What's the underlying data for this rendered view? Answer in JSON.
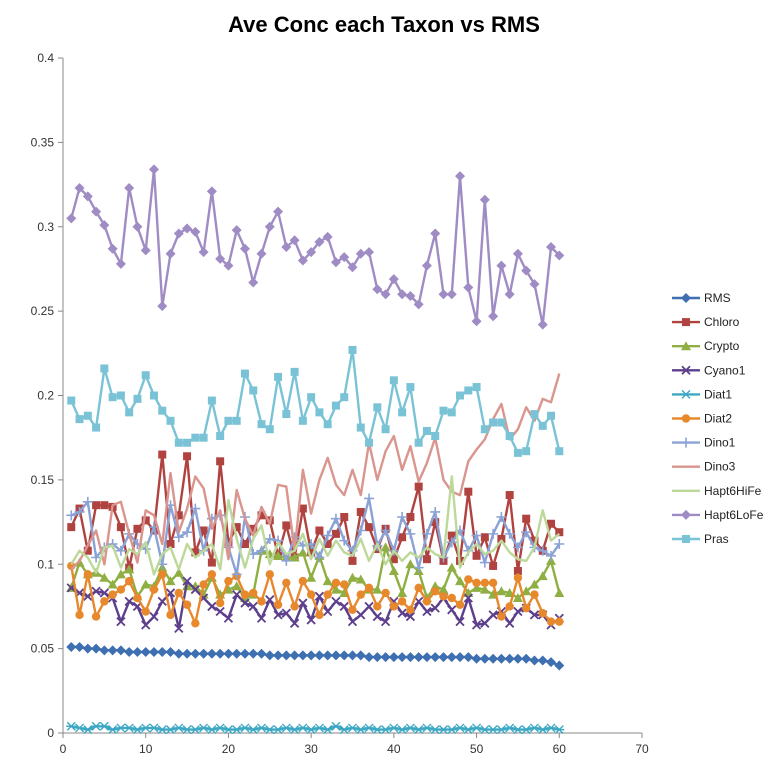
{
  "chart_data": {
    "type": "line",
    "title": "Ave Conc each Taxon vs RMS",
    "xlabel": "",
    "ylabel": "",
    "xlim": [
      0,
      70
    ],
    "ylim": [
      0,
      0.4
    ],
    "x_ticks": [
      "0",
      "10",
      "20",
      "30",
      "40",
      "50",
      "60",
      "70"
    ],
    "y_ticks": [
      "0",
      "0.05",
      "0.1",
      "0.15",
      "0.2",
      "0.25",
      "0.3",
      "0.35",
      "0.4"
    ],
    "grid": false,
    "legend_position": "right",
    "x": [
      1,
      2,
      3,
      4,
      5,
      6,
      7,
      8,
      9,
      10,
      11,
      12,
      13,
      14,
      15,
      16,
      17,
      18,
      19,
      20,
      21,
      22,
      23,
      24,
      25,
      26,
      27,
      28,
      29,
      30,
      31,
      32,
      33,
      34,
      35,
      36,
      37,
      38,
      39,
      40,
      41,
      42,
      43,
      44,
      45,
      46,
      47,
      48,
      49,
      50,
      51,
      52,
      53,
      54,
      55,
      56,
      57,
      58,
      59,
      60
    ],
    "series": [
      {
        "name": "RMS",
        "color": "#3e6fb0",
        "marker": "diamond",
        "values": [
          0.051,
          0.051,
          0.05,
          0.05,
          0.049,
          0.049,
          0.049,
          0.048,
          0.048,
          0.048,
          0.048,
          0.048,
          0.048,
          0.047,
          0.047,
          0.047,
          0.047,
          0.047,
          0.047,
          0.047,
          0.047,
          0.047,
          0.047,
          0.047,
          0.046,
          0.046,
          0.046,
          0.046,
          0.046,
          0.046,
          0.046,
          0.046,
          0.046,
          0.046,
          0.046,
          0.046,
          0.045,
          0.045,
          0.045,
          0.045,
          0.045,
          0.045,
          0.045,
          0.045,
          0.045,
          0.045,
          0.045,
          0.045,
          0.045,
          0.044,
          0.044,
          0.044,
          0.044,
          0.044,
          0.044,
          0.044,
          0.043,
          0.043,
          0.042,
          0.04
        ]
      },
      {
        "name": "Chloro",
        "color": "#b04340",
        "marker": "square",
        "values": [
          0.122,
          0.133,
          0.108,
          0.135,
          0.135,
          0.134,
          0.122,
          0.098,
          0.121,
          0.126,
          0.12,
          0.165,
          0.112,
          0.129,
          0.164,
          0.107,
          0.12,
          0.101,
          0.161,
          0.113,
          0.122,
          0.112,
          0.121,
          0.129,
          0.126,
          0.105,
          0.123,
          0.104,
          0.133,
          0.107,
          0.12,
          0.112,
          0.118,
          0.128,
          0.102,
          0.131,
          0.122,
          0.109,
          0.121,
          0.103,
          0.116,
          0.128,
          0.146,
          0.103,
          0.125,
          0.102,
          0.117,
          0.102,
          0.143,
          0.105,
          0.116,
          0.099,
          0.115,
          0.141,
          0.096,
          0.127,
          0.114,
          0.108,
          0.124,
          0.119
        ]
      },
      {
        "name": "Crypto",
        "color": "#8faf42",
        "marker": "triangle",
        "values": [
          0.086,
          0.101,
          0.094,
          0.095,
          0.092,
          0.088,
          0.094,
          0.097,
          0.081,
          0.088,
          0.087,
          0.098,
          0.09,
          0.095,
          0.087,
          0.087,
          0.082,
          0.092,
          0.082,
          0.085,
          0.087,
          0.08,
          0.082,
          0.108,
          0.106,
          0.105,
          0.104,
          0.104,
          0.107,
          0.092,
          0.105,
          0.09,
          0.085,
          0.083,
          0.092,
          0.091,
          0.085,
          0.085,
          0.11,
          0.096,
          0.083,
          0.1,
          0.096,
          0.08,
          0.087,
          0.085,
          0.098,
          0.09,
          0.083,
          0.086,
          0.085,
          0.082,
          0.084,
          0.083,
          0.08,
          0.084,
          0.088,
          0.093,
          0.102,
          0.083
        ]
      },
      {
        "name": "Cyano1",
        "color": "#5d3f8c",
        "marker": "x",
        "values": [
          0.086,
          0.083,
          0.081,
          0.084,
          0.083,
          0.08,
          0.066,
          0.078,
          0.075,
          0.064,
          0.069,
          0.078,
          0.083,
          0.062,
          0.09,
          0.085,
          0.08,
          0.075,
          0.072,
          0.068,
          0.082,
          0.077,
          0.075,
          0.068,
          0.079,
          0.07,
          0.071,
          0.065,
          0.077,
          0.067,
          0.081,
          0.072,
          0.078,
          0.075,
          0.066,
          0.07,
          0.075,
          0.069,
          0.066,
          0.078,
          0.071,
          0.069,
          0.078,
          0.072,
          0.074,
          0.08,
          0.073,
          0.066,
          0.08,
          0.064,
          0.065,
          0.07,
          0.072,
          0.065,
          0.072,
          0.074,
          0.07,
          0.07,
          0.064,
          0.068
        ]
      },
      {
        "name": "Diat1",
        "color": "#3da8c4",
        "marker": "star",
        "values": [
          0.004,
          0.003,
          0.002,
          0.004,
          0.004,
          0.002,
          0.003,
          0.003,
          0.002,
          0.003,
          0.003,
          0.002,
          0.002,
          0.003,
          0.002,
          0.002,
          0.003,
          0.002,
          0.003,
          0.002,
          0.002,
          0.003,
          0.002,
          0.003,
          0.002,
          0.002,
          0.003,
          0.002,
          0.003,
          0.002,
          0.003,
          0.002,
          0.004,
          0.002,
          0.003,
          0.002,
          0.003,
          0.002,
          0.002,
          0.003,
          0.002,
          0.003,
          0.002,
          0.003,
          0.002,
          0.002,
          0.002,
          0.003,
          0.002,
          0.003,
          0.002,
          0.002,
          0.002,
          0.003,
          0.002,
          0.002,
          0.003,
          0.002,
          0.003,
          0.002
        ]
      },
      {
        "name": "Diat2",
        "color": "#e8882c",
        "marker": "circle",
        "values": [
          0.099,
          0.07,
          0.094,
          0.069,
          0.078,
          0.082,
          0.085,
          0.09,
          0.08,
          0.072,
          0.085,
          0.094,
          0.07,
          0.083,
          0.076,
          0.065,
          0.088,
          0.094,
          0.077,
          0.09,
          0.093,
          0.082,
          0.083,
          0.078,
          0.094,
          0.076,
          0.089,
          0.075,
          0.09,
          0.082,
          0.07,
          0.082,
          0.089,
          0.088,
          0.073,
          0.082,
          0.086,
          0.075,
          0.083,
          0.075,
          0.078,
          0.073,
          0.086,
          0.078,
          0.084,
          0.081,
          0.08,
          0.076,
          0.091,
          0.089,
          0.089,
          0.089,
          0.069,
          0.075,
          0.092,
          0.074,
          0.082,
          0.071,
          0.066,
          0.066
        ]
      },
      {
        "name": "Dino1",
        "color": "#8aa2d6",
        "marker": "plus",
        "values": [
          0.129,
          0.131,
          0.137,
          0.104,
          0.11,
          0.112,
          0.108,
          0.118,
          0.112,
          0.109,
          0.122,
          0.1,
          0.135,
          0.116,
          0.119,
          0.133,
          0.108,
          0.127,
          0.129,
          0.11,
          0.094,
          0.128,
          0.106,
          0.108,
          0.115,
          0.114,
          0.102,
          0.116,
          0.111,
          0.112,
          0.104,
          0.117,
          0.127,
          0.114,
          0.108,
          0.12,
          0.139,
          0.111,
          0.12,
          0.108,
          0.128,
          0.118,
          0.098,
          0.118,
          0.131,
          0.104,
          0.113,
          0.12,
          0.108,
          0.117,
          0.101,
          0.118,
          0.128,
          0.118,
          0.11,
          0.119,
          0.11,
          0.108,
          0.105,
          0.112
        ]
      },
      {
        "name": "Dino3",
        "color": "#d9958e",
        "marker": "none",
        "values": [
          0.097,
          0.102,
          0.111,
          0.12,
          0.1,
          0.135,
          0.137,
          0.118,
          0.101,
          0.132,
          0.129,
          0.112,
          0.154,
          0.119,
          0.133,
          0.152,
          0.145,
          0.121,
          0.132,
          0.103,
          0.144,
          0.127,
          0.117,
          0.134,
          0.124,
          0.147,
          0.146,
          0.108,
          0.156,
          0.13,
          0.15,
          0.163,
          0.147,
          0.141,
          0.156,
          0.141,
          0.172,
          0.15,
          0.167,
          0.176,
          0.156,
          0.17,
          0.149,
          0.16,
          0.175,
          0.15,
          0.143,
          0.141,
          0.161,
          0.168,
          0.174,
          0.186,
          0.195,
          0.174,
          0.18,
          0.193,
          0.185,
          0.198,
          0.196,
          0.213
        ]
      },
      {
        "name": "Hapt6HiFe",
        "color": "#bcd99a",
        "marker": "none",
        "values": [
          0.1,
          0.108,
          0.104,
          0.095,
          0.11,
          0.111,
          0.098,
          0.109,
          0.106,
          0.113,
          0.094,
          0.106,
          0.11,
          0.097,
          0.112,
          0.104,
          0.108,
          0.112,
          0.097,
          0.138,
          0.115,
          0.098,
          0.115,
          0.123,
          0.1,
          0.113,
          0.106,
          0.108,
          0.118,
          0.103,
          0.115,
          0.105,
          0.114,
          0.107,
          0.105,
          0.115,
          0.102,
          0.112,
          0.1,
          0.108,
          0.102,
          0.107,
          0.104,
          0.11,
          0.106,
          0.104,
          0.152,
          0.098,
          0.107,
          0.112,
          0.106,
          0.108,
          0.114,
          0.107,
          0.103,
          0.102,
          0.11,
          0.132,
          0.114,
          0.118
        ]
      },
      {
        "name": "Hapt6LoFe",
        "color": "#a08cc4",
        "marker": "diamond",
        "values": [
          0.305,
          0.323,
          0.318,
          0.309,
          0.301,
          0.287,
          0.278,
          0.323,
          0.3,
          0.286,
          0.334,
          0.253,
          0.284,
          0.296,
          0.299,
          0.297,
          0.285,
          0.321,
          0.281,
          0.277,
          0.298,
          0.287,
          0.267,
          0.284,
          0.3,
          0.309,
          0.288,
          0.292,
          0.28,
          0.285,
          0.291,
          0.294,
          0.279,
          0.282,
          0.276,
          0.284,
          0.285,
          0.263,
          0.26,
          0.269,
          0.26,
          0.259,
          0.254,
          0.277,
          0.296,
          0.26,
          0.26,
          0.33,
          0.264,
          0.244,
          0.316,
          0.247,
          0.277,
          0.26,
          0.284,
          0.274,
          0.266,
          0.242,
          0.288,
          0.283
        ]
      },
      {
        "name": "Pras",
        "color": "#7ac3d6",
        "marker": "square",
        "values": [
          0.197,
          0.186,
          0.188,
          0.181,
          0.216,
          0.199,
          0.2,
          0.19,
          0.198,
          0.212,
          0.2,
          0.191,
          0.185,
          0.172,
          0.172,
          0.175,
          0.175,
          0.197,
          0.176,
          0.185,
          0.185,
          0.213,
          0.203,
          0.183,
          0.18,
          0.211,
          0.189,
          0.214,
          0.185,
          0.199,
          0.19,
          0.183,
          0.194,
          0.199,
          0.227,
          0.181,
          0.172,
          0.193,
          0.18,
          0.209,
          0.19,
          0.205,
          0.172,
          0.179,
          0.176,
          0.191,
          0.19,
          0.2,
          0.203,
          0.205,
          0.18,
          0.184,
          0.184,
          0.176,
          0.166,
          0.167,
          0.189,
          0.182,
          0.188,
          0.167
        ]
      }
    ]
  }
}
